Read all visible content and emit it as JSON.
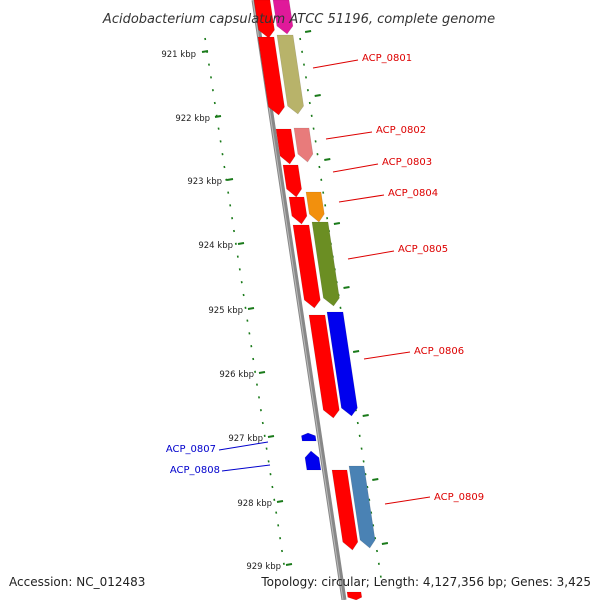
{
  "title": "Acidobacterium capsulatum ATCC 51196, complete genome",
  "accession": "Accession: NC_012483",
  "summary": "Topology: circular; Length: 4,127,356 bp; Genes: 3,425",
  "colors": {
    "backbone": "#8a8a8a",
    "tick": "#1a7a1a",
    "label_forward": "#dd0000",
    "label_reverse": "#0000cc"
  },
  "kbp_ticks": [
    "921 kbp",
    "922 kbp",
    "923 kbp",
    "924 kbp",
    "925 kbp",
    "926 kbp",
    "927 kbp",
    "928 kbp",
    "929 kbp"
  ],
  "genes": [
    {
      "id": "ACP_0801",
      "color": "#b8b36a"
    },
    {
      "id": "ACP_0802",
      "color": "#e87b7b"
    },
    {
      "id": "ACP_0803",
      "color": "#ff0000"
    },
    {
      "id": "ACP_0804",
      "color": "#f2900d"
    },
    {
      "id": "ACP_0805",
      "color": "#6b8e23"
    },
    {
      "id": "ACP_0806",
      "color": "#0000ee"
    },
    {
      "id": "ACP_0807",
      "color": "#0000ee"
    },
    {
      "id": "ACP_0808",
      "color": "#0000ee"
    },
    {
      "id": "ACP_0809",
      "color": "#4a82b4"
    }
  ]
}
